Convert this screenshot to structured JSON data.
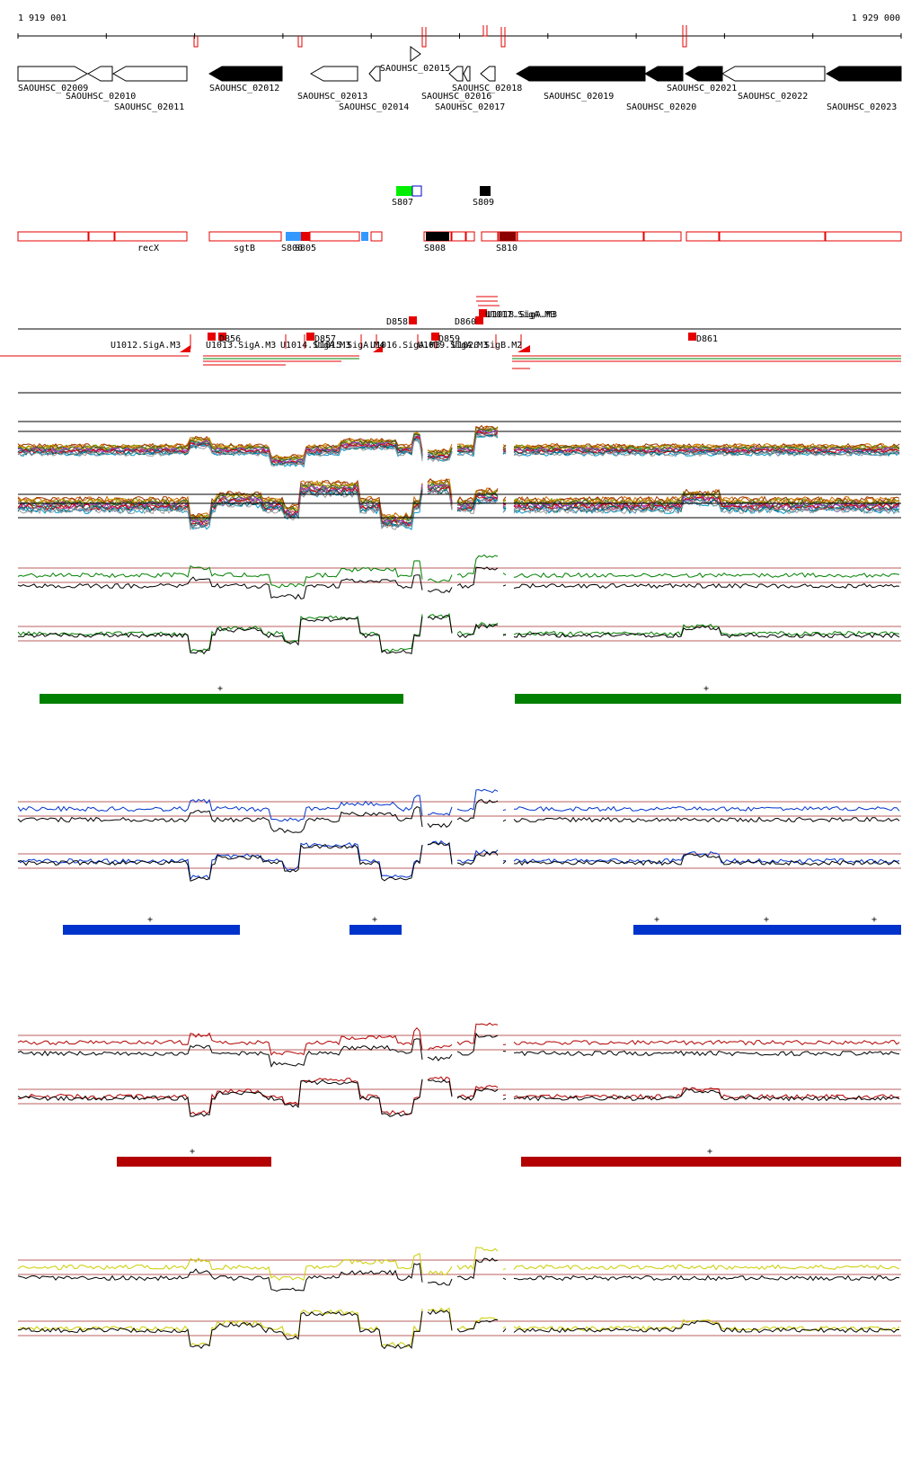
{
  "ruler": {
    "start_label": "1 919 001",
    "end_label": "1 929 000",
    "start_bp": 1919001,
    "end_bp": 1929000
  },
  "colors": {
    "conditions": [
      "#008000",
      "#0033cc",
      "#b30000",
      "#cccc00"
    ],
    "feature_red": "#e60000",
    "feature_blue": "#3399ff",
    "feature_green": "#00ee00",
    "feature_dark": "#000000",
    "feature_darkred": "#8b0000",
    "threshold": "#a52a2a"
  },
  "genes": [
    {
      "label": "SAOUHSC_02009",
      "strand": "+",
      "filled": false
    },
    {
      "label": "SAOUHSC_02010",
      "strand": "-",
      "filled": false
    },
    {
      "label": "SAOUHSC_02011",
      "strand": "-",
      "filled": false
    },
    {
      "label": "SAOUHSC_02012",
      "strand": "-",
      "filled": true
    },
    {
      "label": "SAOUHSC_02013",
      "strand": "-",
      "filled": false
    },
    {
      "label": "SAOUHSC_02014",
      "strand": "-",
      "filled": false
    },
    {
      "label": "SAOUHSC_02015",
      "strand": "+",
      "filled": false
    },
    {
      "label": "SAOUHSC_02016",
      "strand": "-",
      "filled": false
    },
    {
      "label": "SAOUHSC_02017",
      "strand": "-",
      "filled": false
    },
    {
      "label": "SAOUHSC_02018",
      "strand": "-",
      "filled": false
    },
    {
      "label": "SAOUHSC_02019",
      "strand": "-",
      "filled": true
    },
    {
      "label": "SAOUHSC_02020",
      "strand": "-",
      "filled": true
    },
    {
      "label": "SAOUHSC_02021",
      "strand": "-",
      "filled": true
    },
    {
      "label": "SAOUHSC_02022",
      "strand": "-",
      "filled": false
    },
    {
      "label": "SAOUHSC_02023",
      "strand": "-",
      "filled": true
    }
  ],
  "upper_features": [
    {
      "label": "S807"
    },
    {
      "label": "S809"
    }
  ],
  "segments_row": {
    "labels": [
      "recX",
      "sgtB",
      "S806",
      "S805",
      "S808",
      "S810"
    ]
  },
  "promoters": {
    "top_labels": [
      "U1017.SigA.M3",
      "U1018.SigA.M3",
      "D858",
      "D860"
    ],
    "mid_labels": [
      "D856",
      "D857",
      "D859",
      "D861"
    ],
    "bottom_labels": [
      "U1012.SigA.M3",
      "U1013.SigA.M3",
      "U1014.SigA.M3",
      "U1015.SigA.M4",
      "U1016.SigA.M3",
      "U1019.SigA.M3",
      "U1020.SigB.M2"
    ]
  },
  "conditions": [
    {
      "color": "#008000",
      "blocks": [
        {
          "plus": "+"
        },
        {
          "plus": "+"
        }
      ]
    },
    {
      "color": "#0033cc",
      "blocks": [
        {
          "plus": "+"
        },
        {
          "plus": "+"
        },
        {
          "plus": "+"
        },
        {
          "plus": "+"
        },
        {
          "plus": "+"
        }
      ]
    },
    {
      "color": "#b30000",
      "blocks": [
        {
          "plus": "+"
        },
        {
          "plus": "+"
        }
      ]
    },
    {
      "color": "#cccc00",
      "blocks": []
    }
  ]
}
